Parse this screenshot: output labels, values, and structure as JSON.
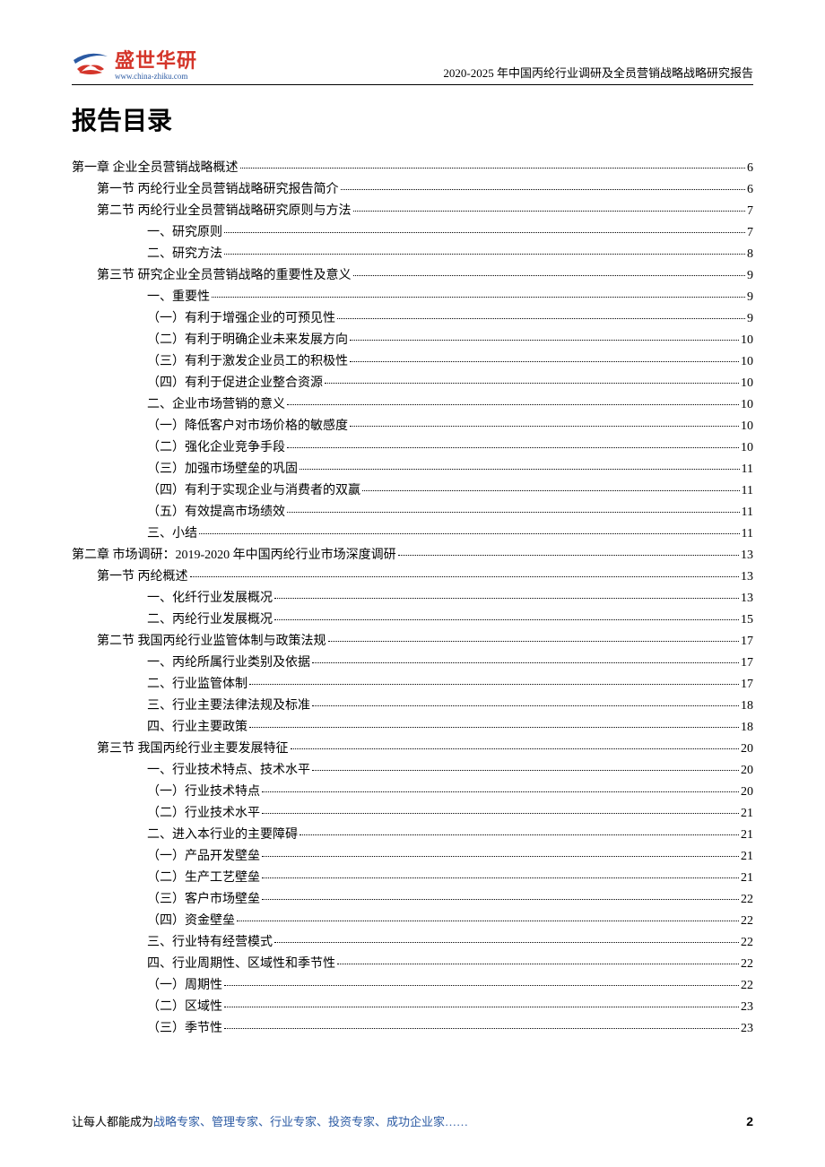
{
  "logo": {
    "name": "盛世华研",
    "url": "www.china-zhiku.com",
    "swoosh_color_top": "#2b5aa3",
    "swoosh_color_bottom": "#d4352a",
    "book_color": "#d4352a"
  },
  "header_title": "2020-2025 年中国丙纶行业调研及全员营销战略战略研究报告",
  "page_title": "报告目录",
  "footer": {
    "prefix": "让每人都能成为",
    "highlights": "战略专家、管理专家、行业专家、投资专家、成功企业家……",
    "page_number": "2"
  },
  "colors": {
    "text": "#000000",
    "blue": "#2b5aa3",
    "red": "#d4352a",
    "background": "#ffffff"
  },
  "toc": [
    {
      "label": "第一章 企业全员营销战略概述",
      "page": "6",
      "indent": 0
    },
    {
      "label": "第一节 丙纶行业全员营销战略研究报告简介",
      "page": "6",
      "indent": 1
    },
    {
      "label": "第二节 丙纶行业全员营销战略研究原则与方法",
      "page": "7",
      "indent": 1
    },
    {
      "label": "一、研究原则",
      "page": "7",
      "indent": 2
    },
    {
      "label": "二、研究方法",
      "page": "8",
      "indent": 2
    },
    {
      "label": "第三节 研究企业全员营销战略的重要性及意义",
      "page": "9",
      "indent": 1
    },
    {
      "label": "一、重要性",
      "page": "9",
      "indent": 2
    },
    {
      "label": "（一）有利于增强企业的可预见性",
      "page": "9",
      "indent": 3
    },
    {
      "label": "（二）有利于明确企业未来发展方向",
      "page": "10",
      "indent": 3
    },
    {
      "label": "（三）有利于激发企业员工的积极性",
      "page": "10",
      "indent": 3
    },
    {
      "label": "（四）有利于促进企业整合资源",
      "page": "10",
      "indent": 3
    },
    {
      "label": "二、企业市场营销的意义",
      "page": "10",
      "indent": 2
    },
    {
      "label": "（一）降低客户对市场价格的敏感度",
      "page": "10",
      "indent": 3
    },
    {
      "label": "（二）强化企业竞争手段",
      "page": "10",
      "indent": 3
    },
    {
      "label": "（三）加强市场壁垒的巩固",
      "page": "11",
      "indent": 3
    },
    {
      "label": "（四）有利于实现企业与消费者的双赢",
      "page": "11",
      "indent": 3
    },
    {
      "label": "（五）有效提高市场绩效",
      "page": "11",
      "indent": 3
    },
    {
      "label": "三、小结",
      "page": "11",
      "indent": 2
    },
    {
      "label": "第二章 市场调研：2019-2020 年中国丙纶行业市场深度调研",
      "page": "13",
      "indent": 0
    },
    {
      "label": "第一节 丙纶概述",
      "page": "13",
      "indent": 1
    },
    {
      "label": "一、化纤行业发展概况",
      "page": "13",
      "indent": 2
    },
    {
      "label": "二、丙纶行业发展概况",
      "page": "15",
      "indent": 2
    },
    {
      "label": "第二节 我国丙纶行业监管体制与政策法规",
      "page": "17",
      "indent": 1
    },
    {
      "label": "一、丙纶所属行业类别及依据",
      "page": "17",
      "indent": 2
    },
    {
      "label": "二、行业监管体制",
      "page": "17",
      "indent": 2
    },
    {
      "label": "三、行业主要法律法规及标准",
      "page": "18",
      "indent": 2
    },
    {
      "label": "四、行业主要政策",
      "page": "18",
      "indent": 2
    },
    {
      "label": "第三节 我国丙纶行业主要发展特征",
      "page": "20",
      "indent": 1
    },
    {
      "label": "一、行业技术特点、技术水平",
      "page": "20",
      "indent": 2
    },
    {
      "label": "（一）行业技术特点",
      "page": "20",
      "indent": 3
    },
    {
      "label": "（二）行业技术水平",
      "page": "21",
      "indent": 3
    },
    {
      "label": "二、进入本行业的主要障碍",
      "page": "21",
      "indent": 2
    },
    {
      "label": "（一）产品开发壁垒",
      "page": "21",
      "indent": 3
    },
    {
      "label": "（二）生产工艺壁垒",
      "page": "21",
      "indent": 3
    },
    {
      "label": "（三）客户市场壁垒",
      "page": "22",
      "indent": 3
    },
    {
      "label": "（四）资金壁垒",
      "page": "22",
      "indent": 3
    },
    {
      "label": "三、行业特有经营模式",
      "page": "22",
      "indent": 2
    },
    {
      "label": "四、行业周期性、区域性和季节性",
      "page": "22",
      "indent": 2
    },
    {
      "label": "（一）周期性",
      "page": "22",
      "indent": 3
    },
    {
      "label": "（二）区域性",
      "page": "23",
      "indent": 3
    },
    {
      "label": "（三）季节性",
      "page": "23",
      "indent": 3
    }
  ]
}
